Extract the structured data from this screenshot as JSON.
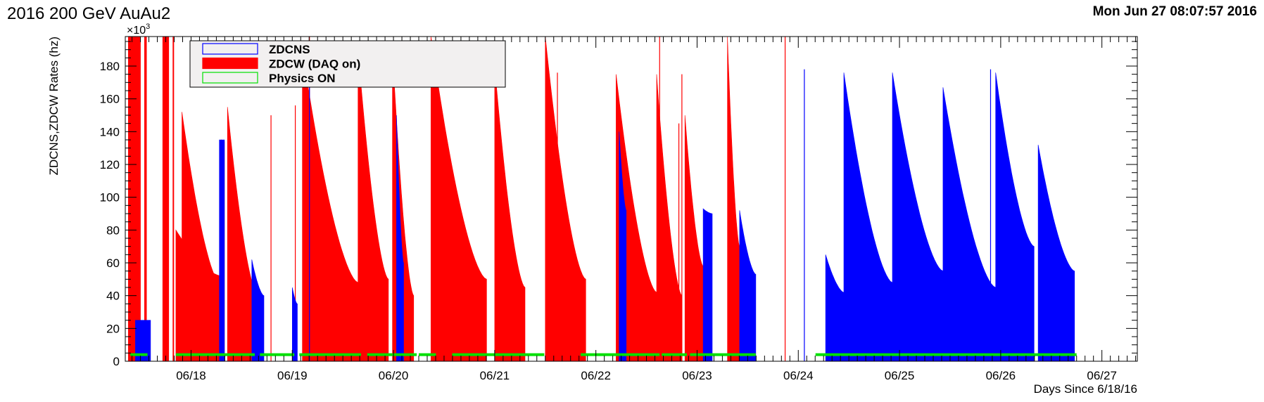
{
  "header": {
    "title": "2016 200 GeV AuAu2",
    "timestamp": "Mon Jun 27 08:07:57 2016"
  },
  "colors": {
    "zdcns": "#0000ff",
    "zdcw": "#ff0000",
    "physics": "#00e000",
    "legend_bg": "#f2f0f0"
  },
  "chart_data": {
    "type": "area",
    "title": "2016 200 GeV AuAu2",
    "xlabel": "Days Since 6/18/16",
    "ylabel": "ZDCNS,ZDCW Rates (hz)",
    "y_multiplier_base": "×10",
    "y_multiplier_exp": "3",
    "xlim": [
      -0.65,
      9.35
    ],
    "ylim": [
      0,
      198
    ],
    "y_ticks": [
      0,
      20,
      40,
      60,
      80,
      100,
      120,
      140,
      160,
      180
    ],
    "x_ticks": [
      {
        "x": 0,
        "label": "06/18"
      },
      {
        "x": 1,
        "label": "06/19"
      },
      {
        "x": 2,
        "label": "06/20"
      },
      {
        "x": 3,
        "label": "06/21"
      },
      {
        "x": 4,
        "label": "06/22"
      },
      {
        "x": 5,
        "label": "06/23"
      },
      {
        "x": 6,
        "label": "06/24"
      },
      {
        "x": 7,
        "label": "06/25"
      },
      {
        "x": 8,
        "label": "06/26"
      },
      {
        "x": 9,
        "label": "06/27"
      }
    ],
    "legend": [
      {
        "name": "ZDCNS",
        "color": "#0000ff"
      },
      {
        "name": "ZDCW (DAQ on)",
        "color": "#ff0000"
      },
      {
        "name": "Physics ON",
        "color": "#00e000"
      }
    ],
    "series": [
      {
        "name": "ZDCW (DAQ on)",
        "color": "#ff0000",
        "fills": [
          {
            "start": -0.62,
            "end": -0.5,
            "peak": 198,
            "tail": 198
          },
          {
            "start": -0.46,
            "end": -0.44,
            "peak": 198,
            "tail": 198
          },
          {
            "start": -0.28,
            "end": -0.22,
            "peak": 198,
            "tail": 198
          },
          {
            "start": -0.18,
            "end": -0.17,
            "peak": 198,
            "tail": 198
          },
          {
            "start": -0.15,
            "end": 0.3,
            "peak": 80,
            "tail": 52
          },
          {
            "start": -0.09,
            "end": 0.29,
            "peak": 152,
            "tail": 47
          },
          {
            "start": 0.3,
            "end": 0.33,
            "peak": 135,
            "tail": 134
          },
          {
            "start": 0.36,
            "end": 0.66,
            "peak": 155,
            "tail": 40
          },
          {
            "start": 1.1,
            "end": 1.65,
            "peak": 190,
            "tail": 48
          },
          {
            "start": 1.65,
            "end": 1.95,
            "peak": 190,
            "tail": 50
          },
          {
            "start": 1.99,
            "end": 2.2,
            "peak": 190,
            "tail": 40
          },
          {
            "start": 2.37,
            "end": 2.92,
            "peak": 198,
            "tail": 50
          },
          {
            "start": 3.0,
            "end": 3.3,
            "peak": 180,
            "tail": 45
          },
          {
            "start": 3.5,
            "end": 3.9,
            "peak": 198,
            "tail": 50
          },
          {
            "start": 4.2,
            "end": 4.6,
            "peak": 175,
            "tail": 42
          },
          {
            "start": 4.6,
            "end": 4.85,
            "peak": 175,
            "tail": 40
          },
          {
            "start": 4.88,
            "end": 5.06,
            "peak": 150,
            "tail": 58
          },
          {
            "start": 5.3,
            "end": 5.42,
            "peak": 198,
            "tail": 70
          }
        ],
        "spikes": [
          {
            "x": 0.79,
            "top": 150
          },
          {
            "x": 1.03,
            "top": 156
          },
          {
            "x": 1.17,
            "top": 198
          },
          {
            "x": 3.62,
            "top": 176
          },
          {
            "x": 4.85,
            "top": 175
          },
          {
            "x": 4.82,
            "top": 145
          },
          {
            "x": 5.87,
            "top": 198
          },
          {
            "x": 4.63,
            "top": 198
          }
        ]
      },
      {
        "name": "ZDCNS",
        "color": "#0000ff",
        "fills": [
          {
            "start": -0.55,
            "end": -0.4,
            "peak": 25,
            "tail": 25
          },
          {
            "start": 0.6,
            "end": 0.72,
            "peak": 62,
            "tail": 40
          },
          {
            "start": 0.28,
            "end": 0.33,
            "peak": 135,
            "tail": 135
          },
          {
            "start": 1.0,
            "end": 1.05,
            "peak": 45,
            "tail": 35
          },
          {
            "start": 2.03,
            "end": 2.1,
            "peak": 150,
            "tail": 60
          },
          {
            "start": 4.23,
            "end": 4.3,
            "peak": 140,
            "tail": 92
          },
          {
            "start": 5.06,
            "end": 5.15,
            "peak": 93,
            "tail": 90
          },
          {
            "start": 5.42,
            "end": 5.58,
            "peak": 92,
            "tail": 53
          },
          {
            "start": 6.27,
            "end": 6.45,
            "peak": 65,
            "tail": 42
          },
          {
            "start": 6.45,
            "end": 6.93,
            "peak": 176,
            "tail": 48
          },
          {
            "start": 6.93,
            "end": 7.43,
            "peak": 176,
            "tail": 55
          },
          {
            "start": 7.43,
            "end": 7.95,
            "peak": 167,
            "tail": 45
          },
          {
            "start": 7.95,
            "end": 8.33,
            "peak": 176,
            "tail": 70
          },
          {
            "start": 8.37,
            "end": 8.73,
            "peak": 132,
            "tail": 55
          }
        ],
        "spikes": [
          {
            "x": 1.17,
            "top": 168
          },
          {
            "x": 6.06,
            "top": 178
          },
          {
            "x": 7.9,
            "top": 178
          }
        ]
      },
      {
        "name": "Physics ON",
        "color": "#00e000",
        "segments": [
          [
            -0.6,
            -0.43
          ],
          [
            -0.15,
            0.63
          ],
          [
            0.68,
            1.02
          ],
          [
            1.07,
            1.68
          ],
          [
            1.74,
            2.23
          ],
          [
            2.25,
            2.42
          ],
          [
            2.58,
            3.49
          ],
          [
            3.85,
            4.63
          ],
          [
            4.65,
            4.9
          ],
          [
            4.93,
            5.58
          ],
          [
            6.17,
            8.75
          ]
        ]
      }
    ]
  }
}
